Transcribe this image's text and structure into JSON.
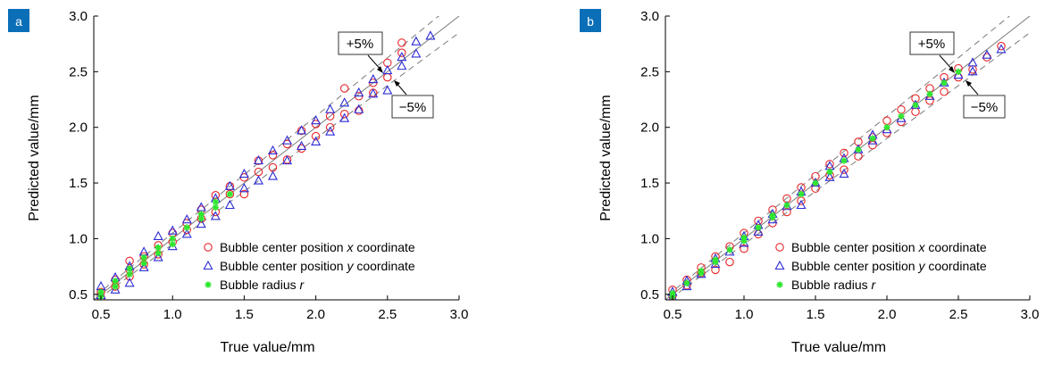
{
  "panels": [
    {
      "badge": "a",
      "xlabel": "True value/mm",
      "ylabel": "Predicted value/mm",
      "xlim": [
        0.45,
        3.0
      ],
      "ylim": [
        0.45,
        3.0
      ],
      "xticks": [
        "0.5",
        "1.0",
        "1.5",
        "2.0",
        "2.5",
        "3.0"
      ],
      "yticks": [
        "0.5",
        "1.0",
        "1.5",
        "2.0",
        "2.5",
        "3.0"
      ],
      "annotations": {
        "plus": "+5%",
        "minus": "−5%"
      },
      "legend": [
        {
          "marker": "circle",
          "color": "#e8262a",
          "text": "Bubble center position ",
          "italic": "x",
          "suffix": " coordinate"
        },
        {
          "marker": "triangle",
          "color": "#2b2bd6",
          "text": "Bubble center position ",
          "italic": "y",
          "suffix": " coordinate"
        },
        {
          "marker": "star",
          "color": "#2ee82e",
          "text": "Bubble radius ",
          "italic": "r",
          "suffix": ""
        }
      ]
    },
    {
      "badge": "b",
      "xlabel": "True value/mm",
      "ylabel": "Predicted value/mm",
      "xlim": [
        0.45,
        3.0
      ],
      "ylim": [
        0.45,
        3.0
      ],
      "xticks": [
        "0.5",
        "1.0",
        "1.5",
        "2.0",
        "2.5",
        "3.0"
      ],
      "yticks": [
        "0.5",
        "1.0",
        "1.5",
        "2.0",
        "2.5",
        "3.0"
      ],
      "annotations": {
        "plus": "+5%",
        "minus": "−5%"
      },
      "legend": [
        {
          "marker": "circle",
          "color": "#e8262a",
          "text": "Bubble center position ",
          "italic": "x",
          "suffix": " coordinate"
        },
        {
          "marker": "triangle",
          "color": "#2b2bd6",
          "text": "Bubble center position ",
          "italic": "y",
          "suffix": " coordinate"
        },
        {
          "marker": "star",
          "color": "#2ee82e",
          "text": "Bubble radius ",
          "italic": "r",
          "suffix": ""
        }
      ]
    }
  ],
  "chart_data": [
    {
      "type": "scatter",
      "xlabel": "True value/mm",
      "ylabel": "Predicted value/mm",
      "xlim": [
        0.45,
        3.0
      ],
      "ylim": [
        0.45,
        3.0
      ],
      "reference_lines": [
        "y = x",
        "+5%",
        "−5%"
      ],
      "series": [
        {
          "name": "Bubble center position x coordinate",
          "color": "#e8262a",
          "x": [
            0.5,
            0.5,
            0.6,
            0.6,
            0.7,
            0.7,
            0.7,
            0.8,
            0.8,
            0.9,
            0.9,
            1.0,
            1.0,
            1.1,
            1.1,
            1.2,
            1.2,
            1.3,
            1.3,
            1.4,
            1.4,
            1.5,
            1.5,
            1.6,
            1.6,
            1.7,
            1.7,
            1.8,
            1.8,
            1.9,
            1.9,
            2.0,
            2.0,
            2.1,
            2.1,
            2.2,
            2.2,
            2.3,
            2.3,
            2.4,
            2.4,
            2.5,
            2.5,
            2.6,
            2.6
          ],
          "y": [
            0.47,
            0.52,
            0.57,
            0.63,
            0.66,
            0.72,
            0.8,
            0.77,
            0.84,
            0.86,
            0.94,
            0.97,
            1.05,
            1.08,
            1.14,
            1.18,
            1.26,
            1.24,
            1.39,
            1.4,
            1.47,
            1.4,
            1.55,
            1.6,
            1.7,
            1.64,
            1.75,
            1.71,
            1.85,
            1.81,
            1.97,
            1.92,
            2.03,
            2.0,
            2.1,
            2.12,
            2.35,
            2.15,
            2.28,
            2.31,
            2.4,
            2.45,
            2.58,
            2.67,
            2.76
          ]
        },
        {
          "name": "Bubble center position y coordinate",
          "color": "#2b2bd6",
          "x": [
            0.5,
            0.5,
            0.6,
            0.6,
            0.7,
            0.7,
            0.8,
            0.8,
            0.9,
            0.9,
            1.0,
            1.0,
            1.1,
            1.1,
            1.2,
            1.2,
            1.3,
            1.3,
            1.4,
            1.4,
            1.5,
            1.5,
            1.6,
            1.6,
            1.7,
            1.7,
            1.8,
            1.8,
            1.9,
            1.9,
            2.0,
            2.0,
            2.1,
            2.1,
            2.2,
            2.2,
            2.3,
            2.3,
            2.4,
            2.4,
            2.5,
            2.5,
            2.6,
            2.6,
            2.7,
            2.7,
            2.8
          ],
          "y": [
            0.49,
            0.57,
            0.54,
            0.65,
            0.6,
            0.75,
            0.74,
            0.88,
            0.83,
            1.02,
            0.93,
            1.07,
            1.04,
            1.17,
            1.13,
            1.28,
            1.2,
            1.36,
            1.3,
            1.47,
            1.45,
            1.58,
            1.52,
            1.7,
            1.56,
            1.79,
            1.7,
            1.88,
            1.83,
            1.97,
            1.87,
            2.06,
            1.96,
            2.16,
            2.08,
            2.22,
            2.16,
            2.31,
            2.3,
            2.43,
            2.33,
            2.51,
            2.55,
            2.63,
            2.66,
            2.77,
            2.82
          ]
        },
        {
          "name": "Bubble radius r",
          "color": "#2ee82e",
          "x": [
            0.5,
            0.5,
            0.6,
            0.6,
            0.7,
            0.7,
            0.8,
            0.8,
            0.9,
            0.9,
            1.0,
            1.0,
            1.1,
            1.2,
            1.2,
            1.3,
            1.3,
            1.4
          ],
          "y": [
            0.48,
            0.52,
            0.57,
            0.62,
            0.68,
            0.73,
            0.78,
            0.83,
            0.87,
            0.92,
            0.95,
            1.0,
            1.1,
            1.18,
            1.22,
            1.28,
            1.33,
            1.4
          ]
        }
      ]
    },
    {
      "type": "scatter",
      "xlabel": "True value/mm",
      "ylabel": "Predicted value/mm",
      "xlim": [
        0.45,
        3.0
      ],
      "ylim": [
        0.45,
        3.0
      ],
      "reference_lines": [
        "y = x",
        "+5%",
        "−5%"
      ],
      "series": [
        {
          "name": "Bubble center position x coordinate",
          "color": "#e8262a",
          "x": [
            0.5,
            0.5,
            0.6,
            0.6,
            0.7,
            0.7,
            0.8,
            0.8,
            0.9,
            0.9,
            1.0,
            1.0,
            1.1,
            1.1,
            1.2,
            1.2,
            1.3,
            1.3,
            1.4,
            1.4,
            1.5,
            1.5,
            1.6,
            1.6,
            1.7,
            1.7,
            1.8,
            1.8,
            1.9,
            1.9,
            2.0,
            2.0,
            2.1,
            2.1,
            2.2,
            2.2,
            2.3,
            2.3,
            2.4,
            2.4,
            2.5,
            2.5,
            2.6,
            2.7,
            2.8
          ],
          "y": [
            0.49,
            0.54,
            0.58,
            0.63,
            0.69,
            0.74,
            0.72,
            0.84,
            0.79,
            0.93,
            0.91,
            1.05,
            1.04,
            1.16,
            1.14,
            1.26,
            1.24,
            1.36,
            1.34,
            1.46,
            1.45,
            1.56,
            1.57,
            1.67,
            1.62,
            1.77,
            1.74,
            1.87,
            1.84,
            1.91,
            1.95,
            2.06,
            2.05,
            2.16,
            2.14,
            2.26,
            2.24,
            2.35,
            2.32,
            2.45,
            2.45,
            2.53,
            2.52,
            2.63,
            2.73
          ]
        },
        {
          "name": "Bubble center position y coordinate",
          "color": "#2b2bd6",
          "x": [
            0.5,
            0.5,
            0.6,
            0.6,
            0.7,
            0.8,
            0.8,
            0.9,
            1.0,
            1.0,
            1.1,
            1.1,
            1.2,
            1.2,
            1.3,
            1.4,
            1.4,
            1.5,
            1.6,
            1.6,
            1.7,
            1.7,
            1.8,
            1.9,
            1.9,
            2.0,
            2.1,
            2.2,
            2.3,
            2.4,
            2.5,
            2.6,
            2.6,
            2.7,
            2.8
          ],
          "y": [
            0.47,
            0.52,
            0.57,
            0.62,
            0.68,
            0.77,
            0.82,
            0.88,
            0.96,
            1.02,
            1.06,
            1.12,
            1.17,
            1.22,
            1.29,
            1.3,
            1.42,
            1.5,
            1.55,
            1.65,
            1.58,
            1.72,
            1.8,
            1.88,
            1.93,
            1.98,
            2.08,
            2.2,
            2.28,
            2.4,
            2.47,
            2.5,
            2.58,
            2.65,
            2.7
          ]
        },
        {
          "name": "Bubble radius r",
          "color": "#2ee82e",
          "x": [
            0.5,
            0.5,
            0.6,
            0.7,
            0.7,
            0.8,
            0.8,
            0.9,
            1.0,
            1.0,
            1.1,
            1.2,
            1.2,
            1.3,
            1.4,
            1.5,
            1.6,
            1.7,
            1.8,
            1.9,
            2.0,
            2.1,
            2.2,
            2.3,
            2.4,
            2.5
          ],
          "y": [
            0.48,
            0.51,
            0.6,
            0.69,
            0.71,
            0.79,
            0.81,
            0.9,
            0.98,
            1.01,
            1.1,
            1.19,
            1.21,
            1.3,
            1.4,
            1.5,
            1.6,
            1.7,
            1.8,
            1.9,
            2.0,
            2.1,
            2.2,
            2.3,
            2.4,
            2.5
          ]
        }
      ]
    }
  ]
}
